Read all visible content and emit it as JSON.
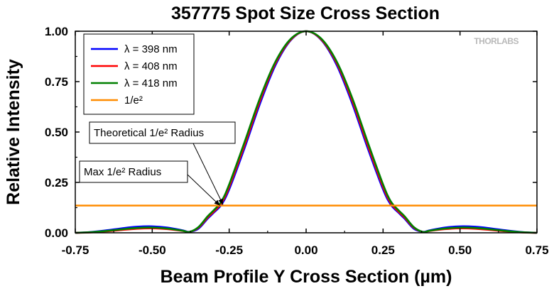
{
  "chart_data": {
    "type": "line",
    "title": "357775 Spot Size Cross Section",
    "xlabel": "Beam Profile Y Cross Section (µm)",
    "ylabel": "Relative Intensity",
    "xlim": [
      -0.75,
      0.75
    ],
    "ylim": [
      0,
      1.0
    ],
    "x_ticks": [
      -0.75,
      -0.5,
      -0.25,
      0,
      0.25,
      0.5,
      0.75
    ],
    "x_tick_labels": [
      "-0.75",
      "-0.50",
      "-0.25",
      "0.00",
      "0.25",
      "0.50",
      "0.75"
    ],
    "y_ticks": [
      0,
      0.25,
      0.5,
      0.75,
      1.0
    ],
    "y_tick_labels": [
      "0.00",
      "0.25",
      "0.50",
      "0.75",
      "1.00"
    ],
    "grid": false,
    "legend_position": "top-left",
    "series": [
      {
        "name": "λ = 398 nm",
        "color": "#0000ff",
        "x": [
          -0.75,
          -0.7,
          -0.65,
          -0.6,
          -0.55,
          -0.5,
          -0.45,
          -0.4,
          -0.38,
          -0.35,
          -0.32,
          -0.3,
          -0.275,
          -0.25,
          -0.2,
          -0.15,
          -0.1,
          -0.05,
          0,
          0.05,
          0.1,
          0.15,
          0.2,
          0.25,
          0.275,
          0.3,
          0.32,
          0.35,
          0.38,
          0.4,
          0.45,
          0.5,
          0.55,
          0.6,
          0.65,
          0.7,
          0.75
        ],
        "y": [
          0.0,
          0.004,
          0.012,
          0.022,
          0.03,
          0.032,
          0.026,
          0.012,
          0.005,
          0.02,
          0.07,
          0.1,
          0.14,
          0.215,
          0.42,
          0.64,
          0.83,
          0.955,
          1.0,
          0.955,
          0.83,
          0.64,
          0.42,
          0.215,
          0.14,
          0.1,
          0.07,
          0.02,
          0.005,
          0.012,
          0.026,
          0.032,
          0.03,
          0.022,
          0.012,
          0.004,
          0.0
        ]
      },
      {
        "name": "λ = 408 nm",
        "color": "#ff0000",
        "x": [
          -0.75,
          -0.7,
          -0.65,
          -0.6,
          -0.55,
          -0.5,
          -0.45,
          -0.4,
          -0.38,
          -0.35,
          -0.32,
          -0.3,
          -0.275,
          -0.25,
          -0.2,
          -0.15,
          -0.1,
          -0.05,
          0,
          0.05,
          0.1,
          0.15,
          0.2,
          0.25,
          0.275,
          0.3,
          0.32,
          0.35,
          0.38,
          0.4,
          0.45,
          0.5,
          0.55,
          0.6,
          0.65,
          0.7,
          0.75
        ],
        "y": [
          0.0,
          0.002,
          0.007,
          0.014,
          0.02,
          0.022,
          0.018,
          0.009,
          0.004,
          0.025,
          0.076,
          0.105,
          0.148,
          0.228,
          0.435,
          0.655,
          0.84,
          0.958,
          1.0,
          0.958,
          0.84,
          0.655,
          0.435,
          0.228,
          0.148,
          0.105,
          0.076,
          0.025,
          0.004,
          0.009,
          0.018,
          0.022,
          0.02,
          0.014,
          0.007,
          0.002,
          0.0
        ]
      },
      {
        "name": "λ = 418 nm",
        "color": "#008000",
        "x": [
          -0.75,
          -0.7,
          -0.65,
          -0.6,
          -0.55,
          -0.5,
          -0.45,
          -0.4,
          -0.38,
          -0.35,
          -0.32,
          -0.3,
          -0.275,
          -0.25,
          -0.2,
          -0.15,
          -0.1,
          -0.05,
          0,
          0.05,
          0.1,
          0.15,
          0.2,
          0.25,
          0.275,
          0.3,
          0.32,
          0.35,
          0.38,
          0.4,
          0.45,
          0.5,
          0.55,
          0.6,
          0.65,
          0.7,
          0.75
        ],
        "y": [
          0.0,
          0.003,
          0.009,
          0.017,
          0.024,
          0.026,
          0.021,
          0.01,
          0.004,
          0.028,
          0.082,
          0.112,
          0.156,
          0.24,
          0.45,
          0.668,
          0.848,
          0.962,
          1.0,
          0.962,
          0.848,
          0.668,
          0.45,
          0.24,
          0.156,
          0.112,
          0.082,
          0.028,
          0.004,
          0.01,
          0.021,
          0.026,
          0.024,
          0.017,
          0.009,
          0.003,
          0.0
        ]
      },
      {
        "name": "1/e²",
        "color": "#ff8c00",
        "x": [
          -0.75,
          0.75
        ],
        "y": [
          0.135,
          0.135
        ]
      }
    ],
    "annotations": [
      {
        "text": "Theoretical 1/e² Radius",
        "target_x": -0.27,
        "target_y": 0.14
      },
      {
        "text": "Max 1/e² Radius",
        "target_x": -0.28,
        "target_y": 0.135
      }
    ],
    "watermark": "THORLABS"
  }
}
